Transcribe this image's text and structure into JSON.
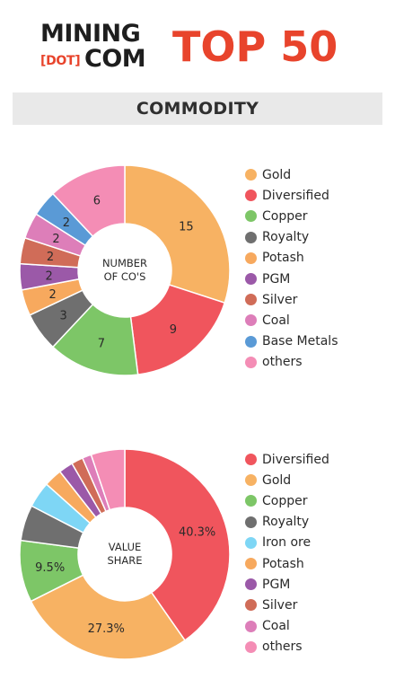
{
  "header": {
    "logo_line1": "MINING",
    "logo_dot": "[DOT]",
    "logo_com": "COM",
    "title": "TOP 50"
  },
  "section": {
    "title": "COMMODITY"
  },
  "chart_data": [
    {
      "type": "pie",
      "center_label": [
        "NUMBER",
        "OF CO'S"
      ],
      "slices": [
        {
          "name": "Gold",
          "value": 15,
          "label": "15",
          "color": "#f7b263"
        },
        {
          "name": "Diversified",
          "value": 9,
          "label": "9",
          "color": "#f0555d"
        },
        {
          "name": "Copper",
          "value": 7,
          "label": "7",
          "color": "#7dc667"
        },
        {
          "name": "Royalty",
          "value": 3,
          "label": "3",
          "color": "#6f6f6f"
        },
        {
          "name": "Potash",
          "value": 2,
          "label": "2",
          "color": "#f7a95e"
        },
        {
          "name": "PGM",
          "value": 2,
          "label": "2",
          "color": "#9b59a8"
        },
        {
          "name": "Silver",
          "value": 2,
          "label": "2",
          "color": "#d06c58"
        },
        {
          "name": "Coal",
          "value": 2,
          "label": "2",
          "color": "#dd7eb9"
        },
        {
          "name": "Base Metals",
          "value": 2,
          "label": "2",
          "color": "#5a9ad6"
        },
        {
          "name": "others",
          "value": 6,
          "label": "6",
          "color": "#f48db5"
        }
      ]
    },
    {
      "type": "pie",
      "center_label": [
        "VALUE",
        "SHARE"
      ],
      "slices": [
        {
          "name": "Diversified",
          "value": 40.3,
          "label": "40.3%",
          "color": "#f0555d"
        },
        {
          "name": "Gold",
          "value": 27.3,
          "label": "27.3%",
          "color": "#f7b263"
        },
        {
          "name": "Copper",
          "value": 9.5,
          "label": "9.5%",
          "color": "#7dc667"
        },
        {
          "name": "Royalty",
          "value": 5.5,
          "label": "",
          "color": "#6f6f6f"
        },
        {
          "name": "Iron ore",
          "value": 4.0,
          "label": "",
          "color": "#7ed6f5"
        },
        {
          "name": "Potash",
          "value": 2.8,
          "label": "",
          "color": "#f7a95e"
        },
        {
          "name": "PGM",
          "value": 2.2,
          "label": "",
          "color": "#9b59a8"
        },
        {
          "name": "Silver",
          "value": 1.8,
          "label": "",
          "color": "#d06c58"
        },
        {
          "name": "Coal",
          "value": 1.4,
          "label": "",
          "color": "#dd7eb9"
        },
        {
          "name": "others",
          "value": 5.2,
          "label": "",
          "color": "#f48db5"
        }
      ]
    }
  ]
}
